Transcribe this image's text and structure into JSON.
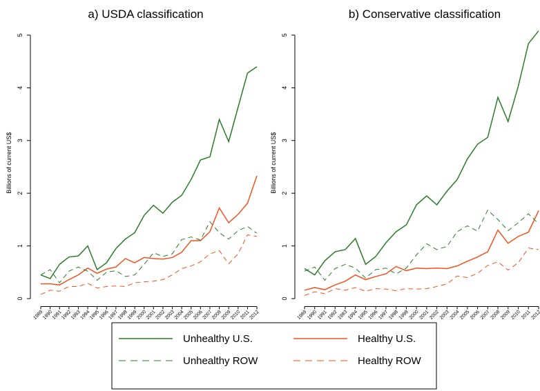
{
  "chart_data": [
    {
      "type": "line",
      "title": "a) USDA classification",
      "ylabel": "Billions of current US$",
      "categories": [
        "1989",
        "1990",
        "1991",
        "1992",
        "1993",
        "1994",
        "1995",
        "1996",
        "1997",
        "1998",
        "1999",
        "2000",
        "2001",
        "2002",
        "2003",
        "2004",
        "2005",
        "2006",
        "2007",
        "2008",
        "2009",
        "2010",
        "2011",
        "2012"
      ],
      "ylim": [
        -0.15,
        5.3
      ],
      "yticks": [
        0,
        1,
        2,
        3,
        4,
        5
      ],
      "legend": "bottom",
      "series": [
        {
          "name": "Unhealthy U.S.",
          "color": "#2a7a2a",
          "dash": false,
          "values": [
            0.45,
            0.38,
            0.65,
            0.79,
            0.81,
            1.0,
            0.55,
            0.68,
            0.95,
            1.13,
            1.25,
            1.58,
            1.77,
            1.62,
            1.83,
            1.96,
            2.26,
            2.63,
            2.69,
            3.4,
            2.98,
            3.63,
            4.28,
            4.4
          ]
        },
        {
          "name": "Healthy U.S.",
          "color": "#f4511e",
          "dash": false,
          "values": [
            0.28,
            0.28,
            0.26,
            0.36,
            0.45,
            0.58,
            0.48,
            0.56,
            0.6,
            0.76,
            0.68,
            0.78,
            0.76,
            0.75,
            0.78,
            0.88,
            1.1,
            1.1,
            1.27,
            1.72,
            1.44,
            1.6,
            1.81,
            2.33
          ]
        },
        {
          "name": "Unhealthy ROW",
          "color": "#2a7a2a",
          "dash": true,
          "values": [
            0.45,
            0.55,
            0.3,
            0.52,
            0.6,
            0.52,
            0.35,
            0.5,
            0.53,
            0.42,
            0.45,
            0.65,
            0.87,
            0.8,
            0.85,
            1.12,
            1.17,
            1.11,
            1.46,
            1.25,
            1.13,
            1.29,
            1.37,
            1.24
          ]
        },
        {
          "name": "Healthy ROW",
          "color": "#f4511e",
          "dash": true,
          "values": [
            0.08,
            0.16,
            0.14,
            0.23,
            0.23,
            0.29,
            0.2,
            0.23,
            0.24,
            0.23,
            0.3,
            0.32,
            0.33,
            0.36,
            0.45,
            0.57,
            0.62,
            0.7,
            0.85,
            0.91,
            0.66,
            0.85,
            1.21,
            1.18
          ]
        }
      ]
    },
    {
      "type": "line",
      "title": "b) Conservative classification",
      "ylabel": "Billions of current US$",
      "categories": [
        "1989",
        "1990",
        "1991",
        "1992",
        "1993",
        "1994",
        "1995",
        "1996",
        "1997",
        "1998",
        "1999",
        "2000",
        "2001",
        "2002",
        "2003",
        "2004",
        "2005",
        "2006",
        "2007",
        "2008",
        "2009",
        "2010",
        "2011",
        "2012"
      ],
      "ylim": [
        -0.15,
        5.3
      ],
      "yticks": [
        0,
        1,
        2,
        3,
        4,
        5
      ],
      "series": [
        {
          "color": "#2a7a2a",
          "dash": false,
          "values": [
            0.57,
            0.45,
            0.72,
            0.89,
            0.93,
            1.14,
            0.65,
            0.8,
            1.06,
            1.27,
            1.4,
            1.78,
            1.95,
            1.78,
            2.04,
            2.26,
            2.65,
            2.93,
            3.06,
            3.82,
            3.36,
            4.03,
            4.84,
            5.08
          ]
        },
        {
          "color": "#f4511e",
          "dash": false,
          "values": [
            0.16,
            0.21,
            0.17,
            0.26,
            0.33,
            0.45,
            0.36,
            0.42,
            0.47,
            0.61,
            0.53,
            0.58,
            0.57,
            0.58,
            0.57,
            0.62,
            0.71,
            0.79,
            0.89,
            1.3,
            1.05,
            1.18,
            1.26,
            1.67
          ]
        },
        {
          "color": "#2a7a2a",
          "dash": true,
          "values": [
            0.52,
            0.6,
            0.35,
            0.57,
            0.65,
            0.58,
            0.39,
            0.55,
            0.58,
            0.47,
            0.58,
            0.83,
            1.04,
            0.93,
            0.99,
            1.27,
            1.38,
            1.28,
            1.68,
            1.5,
            1.29,
            1.44,
            1.61,
            1.42
          ]
        },
        {
          "color": "#f4511e",
          "dash": true,
          "values": [
            0.06,
            0.13,
            0.09,
            0.19,
            0.16,
            0.21,
            0.14,
            0.19,
            0.18,
            0.15,
            0.19,
            0.18,
            0.19,
            0.23,
            0.28,
            0.43,
            0.4,
            0.48,
            0.63,
            0.7,
            0.54,
            0.68,
            0.96,
            0.93
          ]
        }
      ]
    }
  ]
}
